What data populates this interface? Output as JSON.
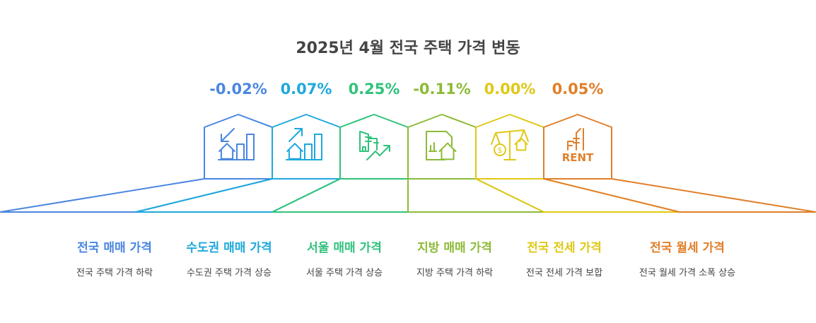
{
  "title": "2025년 4월 전국 주택 가격 변동",
  "items": [
    {
      "change": "-0.02%",
      "label": "전국 매매 가격",
      "desc": "전국 주택 가격 하락",
      "color": "#4a86e0",
      "icon": "house-chart-down-icon"
    },
    {
      "change": "0.07%",
      "label": "수도권 매매 가격",
      "desc": "수도권 주택 가격 상승",
      "color": "#1ea8dc",
      "icon": "house-chart-up-icon"
    },
    {
      "change": "0.25%",
      "label": "서울 매매 가격",
      "desc": "서울 주택 가격 상승",
      "color": "#31c27c",
      "icon": "buildings-trend-up-icon"
    },
    {
      "change": "-0.11%",
      "label": "지방 매매 가격",
      "desc": "지방 주택 가격 하락",
      "color": "#8cbb38",
      "icon": "document-house-icon"
    },
    {
      "change": "0.00%",
      "label": "전국 전세 가격",
      "desc": "전국 전세 가격 보합",
      "color": "#e0c816",
      "icon": "balance-scale-icon"
    },
    {
      "change": "0.05%",
      "label": "전국 월세 가격",
      "desc": "전국 월세 가격 소폭 상승",
      "color": "#e07f2a",
      "icon": "rent-icon"
    }
  ]
}
